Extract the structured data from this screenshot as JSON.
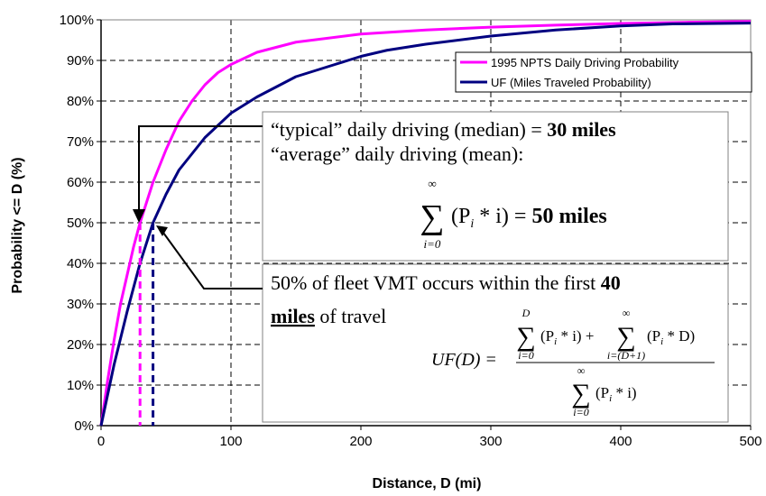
{
  "chart_data": {
    "type": "line",
    "xlabel": "Distance, D (mi)",
    "ylabel": "Probability <= D (%)",
    "xlim": [
      0,
      500
    ],
    "ylim": [
      0,
      100
    ],
    "xticks": [
      "0",
      "100",
      "200",
      "300",
      "400",
      "500"
    ],
    "yticks": [
      "0%",
      "10%",
      "20%",
      "30%",
      "40%",
      "50%",
      "60%",
      "70%",
      "80%",
      "90%",
      "100%"
    ],
    "grid": "dashed",
    "legend_position": "top-right",
    "series": [
      {
        "name": "1995 NPTS Daily Driving Probability",
        "color": "#ff00ff",
        "x": [
          0,
          5,
          10,
          15,
          20,
          25,
          30,
          40,
          50,
          60,
          70,
          80,
          90,
          100,
          120,
          150,
          200,
          250,
          300,
          350,
          400,
          450,
          500
        ],
        "y": [
          0,
          11,
          21,
          30,
          37,
          44,
          50,
          60,
          68,
          75,
          80,
          84,
          87,
          89,
          92,
          94.5,
          96.5,
          97.5,
          98.2,
          98.7,
          99.1,
          99.4,
          99.6
        ]
      },
      {
        "name": "UF (Miles Traveled Probability)",
        "color": "#000080",
        "x": [
          0,
          10,
          20,
          30,
          40,
          50,
          60,
          70,
          80,
          100,
          120,
          150,
          180,
          200,
          220,
          250,
          300,
          350,
          400,
          440,
          500
        ],
        "y": [
          0,
          15,
          28,
          40,
          50,
          57,
          63,
          67,
          71,
          77,
          81,
          86,
          89,
          91,
          92.5,
          94,
          96,
          97.5,
          98.5,
          99,
          99.2
        ]
      }
    ],
    "markers": [
      {
        "x": 30,
        "y": 50,
        "color": "#ff00ff",
        "label": "median"
      },
      {
        "x": 40,
        "y": 50,
        "color": "#000080",
        "label": "fleet VMT"
      }
    ]
  },
  "annotations": {
    "box1_line1_pre": "“typical” daily driving (median) = ",
    "box1_line1_bold": "30 miles",
    "box1_line2": "“average” daily driving (mean):",
    "box1_formula_sigma": "∑",
    "box1_formula_top": "∞",
    "box1_formula_bottom": "i=0",
    "box1_formula_body": "(P",
    "box1_formula_sub": "i",
    "box1_formula_body2": " * i) = ",
    "box1_formula_bold": "50 miles",
    "box2_line1_pre": "50% of fleet VMT occurs within the first ",
    "box2_line1_bold": "40",
    "box2_line2_bold": "miles",
    "box2_line2_post": " of travel",
    "uf_lhs": "UF(D) =",
    "uf_num_sigma1": "∑",
    "uf_num_top1": "D",
    "uf_num_bottom1": "i=0",
    "uf_num_body1": "(P",
    "uf_num_sub1": "i",
    "uf_num_rest1": " * i) +",
    "uf_num_sigma2": "∑",
    "uf_num_top2": "∞",
    "uf_num_bottom2": "i=(D+1)",
    "uf_num_body2": "(P",
    "uf_num_sub2": "i",
    "uf_num_rest2": " * D)",
    "uf_den_sigma": "∑",
    "uf_den_top": "∞",
    "uf_den_bottom": "i=0",
    "uf_den_body": "(P",
    "uf_den_sub": "i",
    "uf_den_rest": " * i)"
  }
}
